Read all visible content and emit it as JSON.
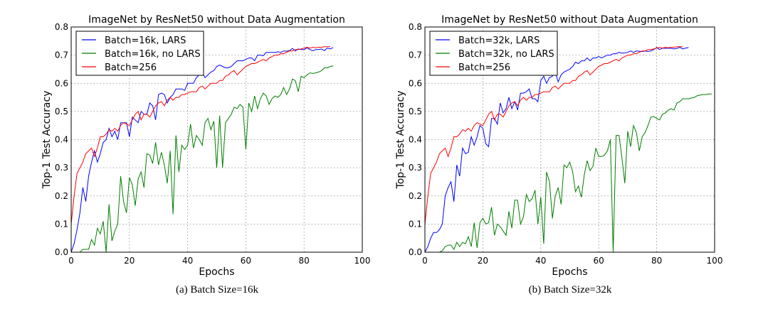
{
  "colors": {
    "blue": "#0000ff",
    "green": "#007f00",
    "red": "#ff0000",
    "grid": "#888888"
  },
  "chart_data": [
    {
      "type": "line",
      "title": "ImageNet by ResNet50 without Data Augmentation",
      "xlabel": "Epochs",
      "ylabel": "Top-1 Test Accuracy",
      "xlim": [
        0,
        100
      ],
      "ylim": [
        0,
        0.8
      ],
      "xticks": [
        "0",
        "20",
        "40",
        "60",
        "80",
        "100"
      ],
      "yticks": [
        "0.0",
        "0.1",
        "0.2",
        "0.3",
        "0.4",
        "0.5",
        "0.6",
        "0.7",
        "0.8"
      ],
      "grid": true,
      "legend_position": "top-left",
      "caption": "(a) Batch Size=16k",
      "series": [
        {
          "name": "Batch=16k, LARS",
          "color": "blue",
          "y": [
            0.0,
            0.03,
            0.08,
            0.14,
            0.23,
            0.18,
            0.27,
            0.32,
            0.36,
            0.32,
            0.35,
            0.39,
            0.4,
            0.44,
            0.41,
            0.43,
            0.4,
            0.46,
            0.46,
            0.46,
            0.41,
            0.48,
            0.47,
            0.46,
            0.5,
            0.49,
            0.49,
            0.53,
            0.52,
            0.47,
            0.56,
            0.565,
            0.56,
            0.53,
            0.55,
            0.56,
            0.58,
            0.58,
            0.58,
            0.575,
            0.6,
            0.6,
            0.6,
            0.62,
            0.63,
            0.64,
            0.62,
            0.63,
            0.64,
            0.645,
            0.66,
            0.665,
            0.66,
            0.655,
            0.655,
            0.66,
            0.67,
            0.68,
            0.68,
            0.68,
            0.685,
            0.69,
            0.69,
            0.68,
            0.7,
            0.7,
            0.698,
            0.71,
            0.71,
            0.71,
            0.71,
            0.712,
            0.71,
            0.715,
            0.714,
            0.716,
            0.724,
            0.715,
            0.722,
            0.72,
            0.72,
            0.726,
            0.72,
            0.716,
            0.72,
            0.72,
            0.722,
            0.716,
            0.725,
            0.722,
            0.727
          ]
        },
        {
          "name": "Batch=16k, no LARS",
          "color": "green",
          "y": [
            0.0,
            0.0,
            0.0,
            0.0,
            0.01,
            0.01,
            0.01,
            0.045,
            0.025,
            0.085,
            0.065,
            0.11,
            0.0,
            0.17,
            0.04,
            0.075,
            0.1,
            0.27,
            0.18,
            0.14,
            0.265,
            0.24,
            0.165,
            0.26,
            0.285,
            0.23,
            0.35,
            0.345,
            0.315,
            0.39,
            0.31,
            0.355,
            0.31,
            0.245,
            0.36,
            0.135,
            0.415,
            0.285,
            0.38,
            0.365,
            0.38,
            0.455,
            0.37,
            0.415,
            0.4,
            0.38,
            0.46,
            0.475,
            0.435,
            0.465,
            0.3,
            0.485,
            0.3,
            0.46,
            0.475,
            0.49,
            0.515,
            0.51,
            0.525,
            0.515,
            0.365,
            0.53,
            0.5,
            0.555,
            0.51,
            0.545,
            0.565,
            0.555,
            0.525,
            0.545,
            0.555,
            0.55,
            0.56,
            0.585,
            0.56,
            0.58,
            0.615,
            0.61,
            0.57,
            0.625,
            0.62,
            0.63,
            0.637,
            0.635,
            0.637,
            0.64,
            0.645,
            0.655,
            0.655,
            0.66,
            0.662
          ]
        },
        {
          "name": "Batch=256",
          "color": "red",
          "y": [
            0.1,
            0.2,
            0.28,
            0.3,
            0.32,
            0.35,
            0.36,
            0.37,
            0.34,
            0.37,
            0.41,
            0.41,
            0.42,
            0.435,
            0.43,
            0.44,
            0.43,
            0.45,
            0.46,
            0.455,
            0.45,
            0.47,
            0.49,
            0.5,
            0.47,
            0.49,
            0.49,
            0.48,
            0.5,
            0.52,
            0.53,
            0.535,
            0.52,
            0.54,
            0.55,
            0.54,
            0.55,
            0.55,
            0.56,
            0.56,
            0.565,
            0.57,
            0.57,
            0.57,
            0.585,
            0.59,
            0.58,
            0.59,
            0.6,
            0.6,
            0.6,
            0.61,
            0.61,
            0.625,
            0.63,
            0.64,
            0.645,
            0.63,
            0.64,
            0.65,
            0.66,
            0.665,
            0.67,
            0.67,
            0.675,
            0.68,
            0.685,
            0.68,
            0.69,
            0.695,
            0.7,
            0.7,
            0.705,
            0.705,
            0.71,
            0.715,
            0.715,
            0.72,
            0.72,
            0.722,
            0.725,
            0.728,
            0.725,
            0.728,
            0.726,
            0.728,
            0.728,
            0.73,
            0.73,
            0.73
          ]
        }
      ]
    },
    {
      "type": "line",
      "title": "ImageNet by ResNet50 without Data Augmentation",
      "xlabel": "Epochs",
      "ylabel": "Top-1 Test Accuracy",
      "xlim": [
        0,
        100
      ],
      "ylim": [
        0,
        0.8
      ],
      "xticks": [
        "0",
        "20",
        "40",
        "60",
        "80",
        "100"
      ],
      "yticks": [
        "0.0",
        "0.1",
        "0.2",
        "0.3",
        "0.4",
        "0.5",
        "0.6",
        "0.7",
        "0.8"
      ],
      "grid": true,
      "legend_position": "top-left",
      "caption": "(b) Batch Size=32k",
      "series": [
        {
          "name": "Batch=32k, LARS",
          "color": "blue",
          "y": [
            0.0,
            0.02,
            0.05,
            0.07,
            0.07,
            0.08,
            0.1,
            0.2,
            0.23,
            0.25,
            0.18,
            0.31,
            0.27,
            0.37,
            0.35,
            0.355,
            0.41,
            0.38,
            0.41,
            0.45,
            0.44,
            0.385,
            0.375,
            0.475,
            0.475,
            0.455,
            0.53,
            0.495,
            0.51,
            0.55,
            0.51,
            0.535,
            0.505,
            0.565,
            0.565,
            0.57,
            0.58,
            0.545,
            0.545,
            0.535,
            0.61,
            0.625,
            0.6,
            0.62,
            0.625,
            0.64,
            0.605,
            0.63,
            0.64,
            0.645,
            0.65,
            0.66,
            0.675,
            0.67,
            0.68,
            0.68,
            0.69,
            0.68,
            0.69,
            0.69,
            0.695,
            0.69,
            0.695,
            0.7,
            0.7,
            0.705,
            0.705,
            0.71,
            0.707,
            0.708,
            0.71,
            0.715,
            0.71,
            0.715,
            0.714,
            0.713,
            0.715,
            0.713,
            0.715,
            0.72,
            0.727,
            0.72,
            0.725,
            0.724,
            0.725,
            0.724,
            0.722,
            0.724,
            0.728,
            0.722,
            0.725,
            0.727
          ]
        },
        {
          "name": "Batch=32k, no LARS",
          "color": "green",
          "y": [
            0,
            0,
            0,
            0,
            0,
            0,
            0.005,
            0.02,
            0.025,
            0.025,
            0.01,
            0.035,
            0.02,
            0.035,
            0.03,
            0.055,
            0.02,
            0.105,
            0.015,
            0.105,
            0.12,
            0.1,
            0.105,
            0.16,
            0.06,
            0.1,
            0.09,
            0.075,
            0.06,
            0.145,
            0.085,
            0.185,
            0.185,
            0.1,
            0.125,
            0.205,
            0.18,
            0.19,
            0.22,
            0.1,
            0.195,
            0.03,
            0.285,
            0.25,
            0.12,
            0.2,
            0.23,
            0.17,
            0.31,
            0.3,
            0.32,
            0.285,
            0.215,
            0.235,
            0.195,
            0.275,
            0.325,
            0.29,
            0.305,
            0.37,
            0.34,
            0.34,
            0.345,
            0.36,
            0.4,
            0.0,
            0.415,
            0.415,
            0.335,
            0.245,
            0.43,
            0.375,
            0.45,
            0.425,
            0.36,
            0.41,
            0.425,
            0.45,
            0.48,
            0.482,
            0.475,
            0.47,
            0.49,
            0.495,
            0.505,
            0.51,
            0.505,
            0.53,
            0.535,
            0.545,
            0.545,
            0.545,
            0.548,
            0.55,
            0.556,
            0.558,
            0.56,
            0.56,
            0.562,
            0.562
          ]
        },
        {
          "name": "Batch=256",
          "color": "red",
          "y": [
            0.1,
            0.2,
            0.28,
            0.3,
            0.32,
            0.35,
            0.36,
            0.37,
            0.34,
            0.37,
            0.41,
            0.41,
            0.42,
            0.435,
            0.43,
            0.44,
            0.43,
            0.45,
            0.46,
            0.455,
            0.45,
            0.47,
            0.49,
            0.5,
            0.47,
            0.49,
            0.49,
            0.48,
            0.5,
            0.52,
            0.53,
            0.535,
            0.52,
            0.54,
            0.55,
            0.54,
            0.55,
            0.55,
            0.56,
            0.56,
            0.565,
            0.57,
            0.57,
            0.57,
            0.585,
            0.59,
            0.58,
            0.59,
            0.6,
            0.6,
            0.6,
            0.61,
            0.61,
            0.625,
            0.63,
            0.64,
            0.645,
            0.63,
            0.64,
            0.65,
            0.66,
            0.665,
            0.67,
            0.67,
            0.675,
            0.68,
            0.685,
            0.68,
            0.69,
            0.695,
            0.7,
            0.7,
            0.705,
            0.705,
            0.71,
            0.715,
            0.715,
            0.72,
            0.72,
            0.722,
            0.725,
            0.728,
            0.725,
            0.728,
            0.726,
            0.728,
            0.728,
            0.73,
            0.73,
            0.73
          ]
        }
      ]
    }
  ]
}
